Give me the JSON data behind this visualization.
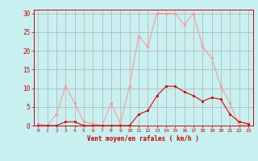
{
  "x": [
    0,
    1,
    2,
    3,
    4,
    5,
    6,
    7,
    8,
    9,
    10,
    11,
    12,
    13,
    14,
    15,
    16,
    17,
    18,
    19,
    20,
    21,
    22,
    23
  ],
  "y_moyen": [
    0,
    0,
    0,
    1,
    1,
    0,
    0,
    0,
    0,
    0,
    0,
    3,
    4,
    8,
    10.5,
    10.5,
    9,
    8,
    6.5,
    7.5,
    7,
    3,
    1,
    0.5
  ],
  "y_rafales": [
    0.5,
    0,
    3,
    10.5,
    6,
    1,
    0.5,
    0,
    6,
    0.5,
    10.5,
    24,
    21,
    30,
    30,
    30,
    27,
    30,
    21,
    18,
    10.5,
    6,
    0,
    0.5
  ],
  "color_moyen": "#dd0000",
  "color_rafales": "#ff9999",
  "xlabel": "Vent moyen/en rafales ( km/h )",
  "ylim": [
    0,
    31
  ],
  "yticks": [
    0,
    5,
    10,
    15,
    20,
    25,
    30
  ],
  "xlim": [
    -0.5,
    23.5
  ],
  "bg_color": "#c8f0f0",
  "grid_color": "#b0b0b0",
  "xlabel_color": "#cc0000",
  "tick_color": "#cc0000"
}
